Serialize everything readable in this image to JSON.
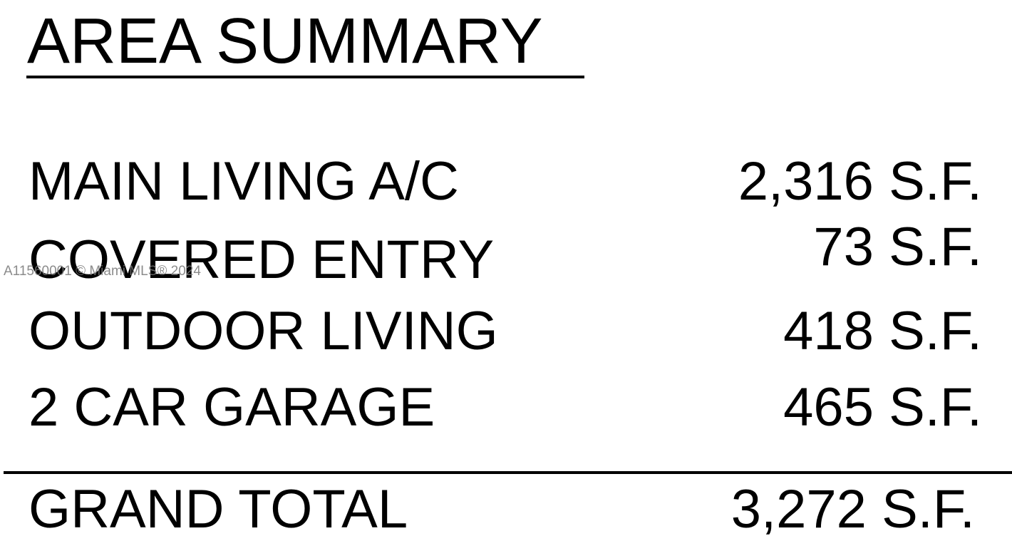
{
  "header": {
    "title": "AREA SUMMARY"
  },
  "table": {
    "rows": [
      [
        "MAIN LIVING A/C",
        "2,316 S.F."
      ],
      [
        "COVERED ENTRY",
        "73 S.F."
      ],
      [
        "OUTDOOR LIVING",
        "418 S.F."
      ],
      [
        "2 CAR GARAGE",
        "465 S.F."
      ]
    ],
    "total": [
      "GRAND TOTAL",
      "3,272 S.F."
    ]
  },
  "watermark": "A11560001 © Miami MLS® 2024"
}
